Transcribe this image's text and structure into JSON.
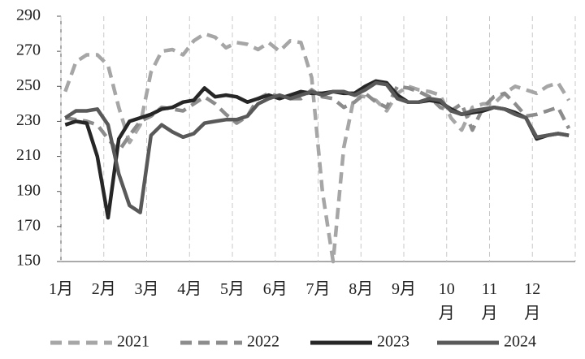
{
  "chart_data": {
    "type": "line",
    "x": [
      1.1,
      1.35,
      1.6,
      1.85,
      2.1,
      2.35,
      2.6,
      2.85,
      3.1,
      3.35,
      3.6,
      3.85,
      4.1,
      4.35,
      4.6,
      4.85,
      5.1,
      5.35,
      5.6,
      5.85,
      6.1,
      6.35,
      6.6,
      6.85,
      7.1,
      7.35,
      7.6,
      7.85,
      8.1,
      8.35,
      8.6,
      8.85,
      9.1,
      9.35,
      9.6,
      9.85,
      10.1,
      10.35,
      10.6,
      10.85,
      11.1,
      11.35,
      11.6,
      11.85,
      12.1,
      12.35,
      12.6,
      12.85
    ],
    "series": [
      {
        "name": "2021",
        "color": "#a6a6a6",
        "dashed": true,
        "values": [
          247,
          264,
          268,
          268,
          262,
          238,
          218,
          228,
          258,
          270,
          271,
          268,
          276,
          280,
          278,
          272,
          275,
          274,
          271,
          275,
          270,
          276,
          275,
          255,
          190,
          150,
          215,
          245,
          244,
          242,
          236,
          246,
          250,
          248,
          247,
          245,
          232,
          225,
          238,
          240,
          240,
          246,
          250,
          248,
          246,
          250,
          252,
          242
        ]
      },
      {
        "name": "2022",
        "color": "#8c8c8c",
        "dashed": true,
        "values": [
          232,
          231,
          230,
          228,
          220,
          213,
          222,
          230,
          233,
          238,
          237,
          236,
          240,
          244,
          240,
          234,
          229,
          233,
          243,
          246,
          244,
          243,
          243,
          248,
          244,
          243,
          238,
          241,
          246,
          241,
          238,
          250,
          249,
          247,
          244,
          238,
          236,
          240,
          225,
          238,
          244,
          246,
          240,
          233,
          234,
          236,
          238,
          226
        ]
      },
      {
        "name": "2023",
        "color": "#262626",
        "dashed": false,
        "values": [
          228,
          230,
          229,
          210,
          175,
          220,
          230,
          232,
          234,
          237,
          238,
          241,
          242,
          249,
          244,
          245,
          244,
          241,
          243,
          245,
          243,
          245,
          247,
          246,
          246,
          247,
          246,
          246,
          250,
          253,
          252,
          245,
          241,
          241,
          242,
          241,
          237,
          234,
          235,
          236,
          238,
          237,
          235,
          232,
          220,
          222,
          223,
          222
        ]
      },
      {
        "name": "2024",
        "color": "#595959",
        "dashed": false,
        "values": [
          232,
          236,
          236,
          237,
          228,
          200,
          182,
          178,
          222,
          228,
          224,
          221,
          223,
          229,
          230,
          231,
          231,
          233,
          240,
          243,
          245,
          243,
          245,
          247,
          245,
          247,
          247,
          245,
          248,
          252,
          251,
          243,
          241,
          241,
          243,
          242,
          236,
          234,
          236,
          237,
          238,
          237,
          234,
          232,
          221,
          222,
          223,
          222
        ]
      }
    ],
    "xlim": [
      1,
      13
    ],
    "xticks": [
      {
        "value": 1,
        "label": "1月"
      },
      {
        "value": 2,
        "label": "2月"
      },
      {
        "value": 3,
        "label": "3月"
      },
      {
        "value": 4,
        "label": "4月"
      },
      {
        "value": 5,
        "label": "5月"
      },
      {
        "value": 6,
        "label": "6月"
      },
      {
        "value": 7,
        "label": "7月"
      },
      {
        "value": 8,
        "label": "8月"
      },
      {
        "value": 9,
        "label": "9月"
      },
      {
        "value": 10,
        "label": "10月"
      },
      {
        "value": 11,
        "label": "11月"
      },
      {
        "value": 12,
        "label": "12月"
      }
    ],
    "ylim": [
      150,
      290
    ],
    "yticks": [
      150,
      170,
      190,
      210,
      230,
      250,
      270,
      290
    ],
    "xgrid": true,
    "legend": "bottom"
  }
}
